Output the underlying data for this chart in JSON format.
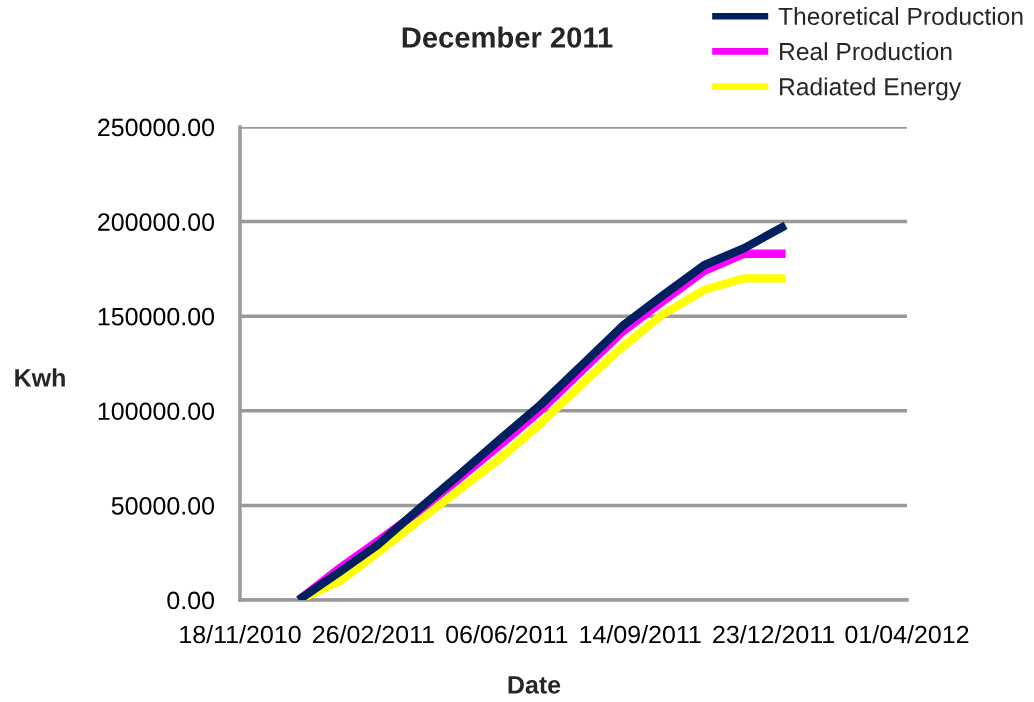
{
  "chart_data": {
    "type": "line",
    "title": "December 2011",
    "xlabel": "Date",
    "ylabel": "Kwh",
    "x": [
      "2011-01-01",
      "2011-02-01",
      "2011-03-01",
      "2011-04-01",
      "2011-05-01",
      "2011-06-01",
      "2011-07-01",
      "2011-08-01",
      "2011-09-01",
      "2011-10-01",
      "2011-11-01",
      "2011-12-01",
      "2012-01-01"
    ],
    "series": [
      {
        "name": "Theoretical Production",
        "color": "#002060",
        "values": [
          0,
          15000,
          29000,
          48000,
          66000,
          85000,
          103000,
          124000,
          145000,
          161000,
          177000,
          186000,
          198000
        ]
      },
      {
        "name": "Real Production",
        "color": "#ff00ff",
        "values": [
          0,
          17000,
          31000,
          47000,
          64000,
          82000,
          100000,
          121000,
          142000,
          158000,
          174000,
          183000,
          183000
        ]
      },
      {
        "name": "Radiated Energy",
        "color": "#ffff00",
        "values": [
          0,
          10000,
          25000,
          42000,
          58000,
          75000,
          93000,
          114000,
          134000,
          151000,
          164000,
          170000,
          170000
        ]
      }
    ],
    "xlim": [
      "2010-11-18",
      "2012-04-01"
    ],
    "xticks": [
      {
        "value": "2010-11-18",
        "label": "18/11/2010"
      },
      {
        "value": "2011-02-26",
        "label": "26/02/2011"
      },
      {
        "value": "2011-06-06",
        "label": "06/06/2011"
      },
      {
        "value": "2011-09-14",
        "label": "14/09/2011"
      },
      {
        "value": "2011-12-23",
        "label": "23/12/2011"
      },
      {
        "value": "2012-04-01",
        "label": "01/04/2012"
      }
    ],
    "ylim": [
      0,
      250000
    ],
    "yticks": [
      {
        "value": 0,
        "label": "0.00"
      },
      {
        "value": 50000,
        "label": "50000.00"
      },
      {
        "value": 100000,
        "label": "100000.00"
      },
      {
        "value": 150000,
        "label": "150000.00"
      },
      {
        "value": 200000,
        "label": "200000.00"
      },
      {
        "value": 250000,
        "label": "250000.00"
      }
    ],
    "grid": "y",
    "legend": "top right",
    "line_style": "solid"
  }
}
